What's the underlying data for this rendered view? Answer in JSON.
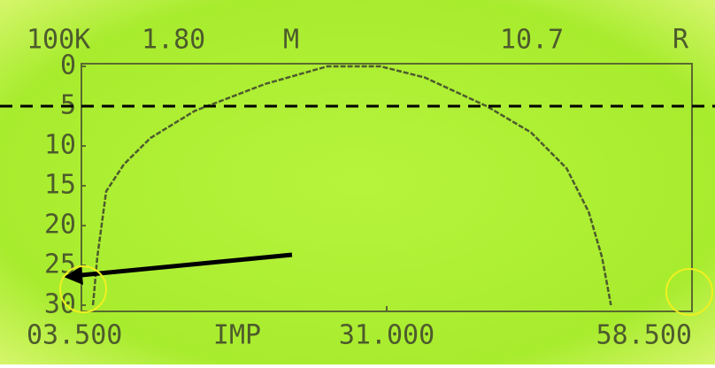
{
  "chart_data": {
    "type": "line",
    "header": [
      "100K",
      "1.80",
      "M",
      "10.7",
      "R"
    ],
    "x_label": "IMP",
    "x": [
      4.54,
      4.93,
      5.73,
      7.33,
      9.72,
      13.7,
      20.08,
      25.66,
      30.44,
      34.43,
      40.0,
      44.0,
      47.2,
      49.2,
      50.4,
      51.2
    ],
    "series": [
      {
        "color": "#4d5b2c",
        "values": [
          30,
          24,
          15.7,
          12.3,
          9,
          5.6,
          2.2,
          0,
          0,
          1.4,
          5,
          8.3,
          12.8,
          18.3,
          24,
          30
        ]
      }
    ],
    "xlim": [
      3.5,
      58.5
    ],
    "xticks": [
      {
        "value": 3.5,
        "label": "03.500"
      },
      {
        "value": 31,
        "label": "31.000"
      },
      {
        "value": 58.5,
        "label": "58.500"
      }
    ],
    "ylim": [
      30,
      0
    ],
    "yticks": [
      0,
      5,
      10,
      15,
      20,
      25,
      30
    ],
    "reference_line": 5
  }
}
